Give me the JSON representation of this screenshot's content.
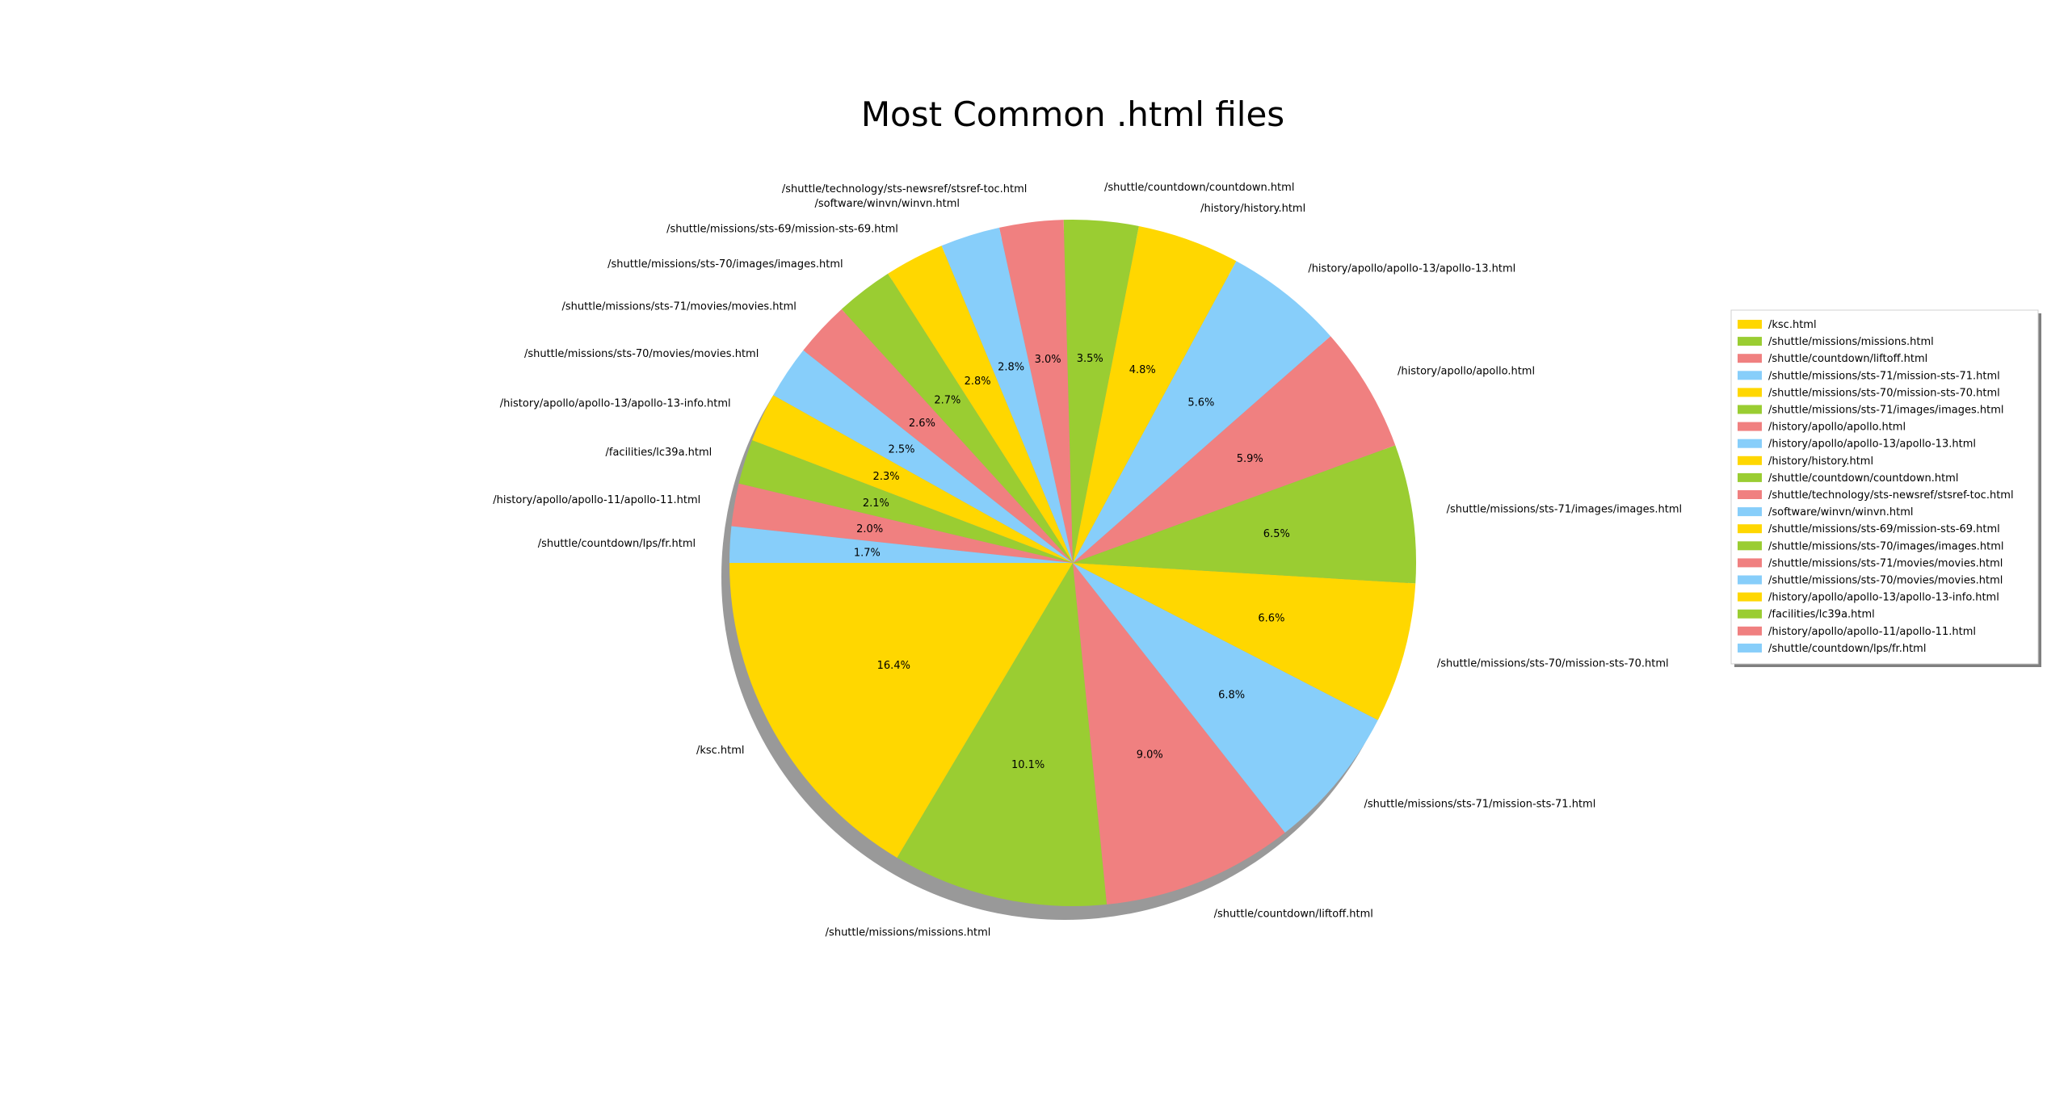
{
  "chart_data": {
    "type": "pie",
    "title": "Most Common .html files",
    "start_angle_deg": 180,
    "direction": "counterclockwise",
    "shadow": true,
    "legend_position": "right",
    "colors": [
      "#ffd700",
      "#9acd32",
      "#f08080",
      "#87cefa"
    ],
    "slices": [
      {
        "label": "/ksc.html",
        "value": 16.4,
        "pct_label": "16.4%"
      },
      {
        "label": "/shuttle/missions/missions.html",
        "value": 10.1,
        "pct_label": "10.1%"
      },
      {
        "label": "/shuttle/countdown/liftoff.html",
        "value": 9.0,
        "pct_label": "9.0%"
      },
      {
        "label": "/shuttle/missions/sts-71/mission-sts-71.html",
        "value": 6.8,
        "pct_label": "6.8%"
      },
      {
        "label": "/shuttle/missions/sts-70/mission-sts-70.html",
        "value": 6.6,
        "pct_label": "6.6%"
      },
      {
        "label": "/shuttle/missions/sts-71/images/images.html",
        "value": 6.5,
        "pct_label": "6.5%"
      },
      {
        "label": "/history/apollo/apollo.html",
        "value": 5.9,
        "pct_label": "5.9%"
      },
      {
        "label": "/history/apollo/apollo-13/apollo-13.html",
        "value": 5.6,
        "pct_label": "5.6%"
      },
      {
        "label": "/history/history.html",
        "value": 4.8,
        "pct_label": "4.8%"
      },
      {
        "label": "/shuttle/countdown/countdown.html",
        "value": 3.5,
        "pct_label": "3.5%"
      },
      {
        "label": "/shuttle/technology/sts-newsref/stsref-toc.html",
        "value": 3.0,
        "pct_label": "3.0%"
      },
      {
        "label": "/software/winvn/winvn.html",
        "value": 2.8,
        "pct_label": "2.8%"
      },
      {
        "label": "/shuttle/missions/sts-69/mission-sts-69.html",
        "value": 2.8,
        "pct_label": "2.8%"
      },
      {
        "label": "/shuttle/missions/sts-70/images/images.html",
        "value": 2.7,
        "pct_label": "2.7%"
      },
      {
        "label": "/shuttle/missions/sts-71/movies/movies.html",
        "value": 2.6,
        "pct_label": "2.6%"
      },
      {
        "label": "/shuttle/missions/sts-70/movies/movies.html",
        "value": 2.5,
        "pct_label": "2.5%"
      },
      {
        "label": "/history/apollo/apollo-13/apollo-13-info.html",
        "value": 2.3,
        "pct_label": "2.3%"
      },
      {
        "label": "/facilities/lc39a.html",
        "value": 2.1,
        "pct_label": "2.1%"
      },
      {
        "label": "/history/apollo/apollo-11/apollo-11.html",
        "value": 2.0,
        "pct_label": "2.0%"
      },
      {
        "label": "/shuttle/countdown/lps/fr.html",
        "value": 1.7,
        "pct_label": "1.7%"
      }
    ]
  }
}
